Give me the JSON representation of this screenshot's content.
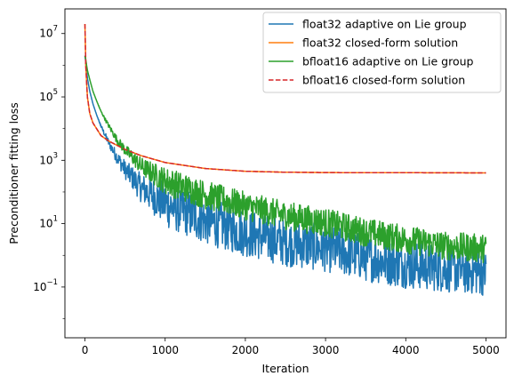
{
  "chart_data": {
    "type": "line",
    "title": "",
    "xlabel": "Iteration",
    "ylabel": "Preconditioner fitting loss",
    "xlim": [
      -250,
      5250
    ],
    "ylim": [
      0.0025,
      60000000
    ],
    "yscale": "log",
    "grid": false,
    "legend_position": "top-right",
    "x_ticks": [
      0,
      1000,
      2000,
      3000,
      4000,
      5000
    ],
    "x_tick_labels": [
      "0",
      "1000",
      "2000",
      "3000",
      "4000",
      "5000"
    ],
    "y_ticks": [
      0.1,
      10,
      1000,
      100000,
      10000000
    ],
    "y_tick_base": "10",
    "y_tick_exponents": [
      "−1",
      "1",
      "3",
      "5",
      "7"
    ],
    "series": [
      {
        "name": "float32 adaptive on Lie group",
        "color": "#1f77b4",
        "style": "solid",
        "noise": 0.75,
        "x": [
          0,
          10,
          30,
          60,
          100,
          150,
          200,
          300,
          400,
          500,
          700,
          1000,
          1500,
          2000,
          2500,
          3000,
          3500,
          4000,
          4500,
          5000
        ],
        "values": [
          2000000,
          1200000,
          400000,
          150000,
          60000,
          25000,
          12000,
          3500,
          1300,
          550,
          150,
          50,
          15,
          6,
          3,
          2,
          1,
          0.6,
          0.45,
          0.35
        ]
      },
      {
        "name": "float32 closed-form solution",
        "color": "#ff7f0e",
        "style": "solid",
        "noise": 0,
        "x": [
          0,
          10,
          30,
          60,
          100,
          200,
          300,
          500,
          700,
          1000,
          1500,
          2000,
          2500,
          3000,
          4000,
          5000
        ],
        "values": [
          20000000,
          1000000,
          100000,
          30000,
          15000,
          6000,
          4000,
          2200,
          1400,
          850,
          550,
          450,
          420,
          410,
          405,
          400
        ]
      },
      {
        "name": "bfloat16 adaptive on Lie group",
        "color": "#2ca02c",
        "style": "solid",
        "noise": 0.45,
        "x": [
          0,
          10,
          30,
          60,
          100,
          150,
          200,
          300,
          400,
          500,
          700,
          1000,
          1500,
          2000,
          2500,
          3000,
          3500,
          4000,
          4500,
          5000
        ],
        "values": [
          2000000,
          1500000,
          700000,
          350000,
          150000,
          70000,
          35000,
          12000,
          4500,
          2200,
          700,
          250,
          90,
          40,
          20,
          12,
          6,
          3.5,
          2.2,
          1.8
        ]
      },
      {
        "name": "bfloat16 closed-form solution",
        "color": "#d62728",
        "style": "dashed",
        "noise": 0,
        "x": [
          0,
          10,
          30,
          60,
          100,
          200,
          300,
          500,
          700,
          1000,
          1500,
          2000,
          2500,
          3000,
          4000,
          5000
        ],
        "values": [
          20000000,
          1000000,
          100000,
          30000,
          15000,
          6000,
          4000,
          2200,
          1400,
          850,
          550,
          450,
          420,
          410,
          405,
          400
        ]
      }
    ]
  }
}
